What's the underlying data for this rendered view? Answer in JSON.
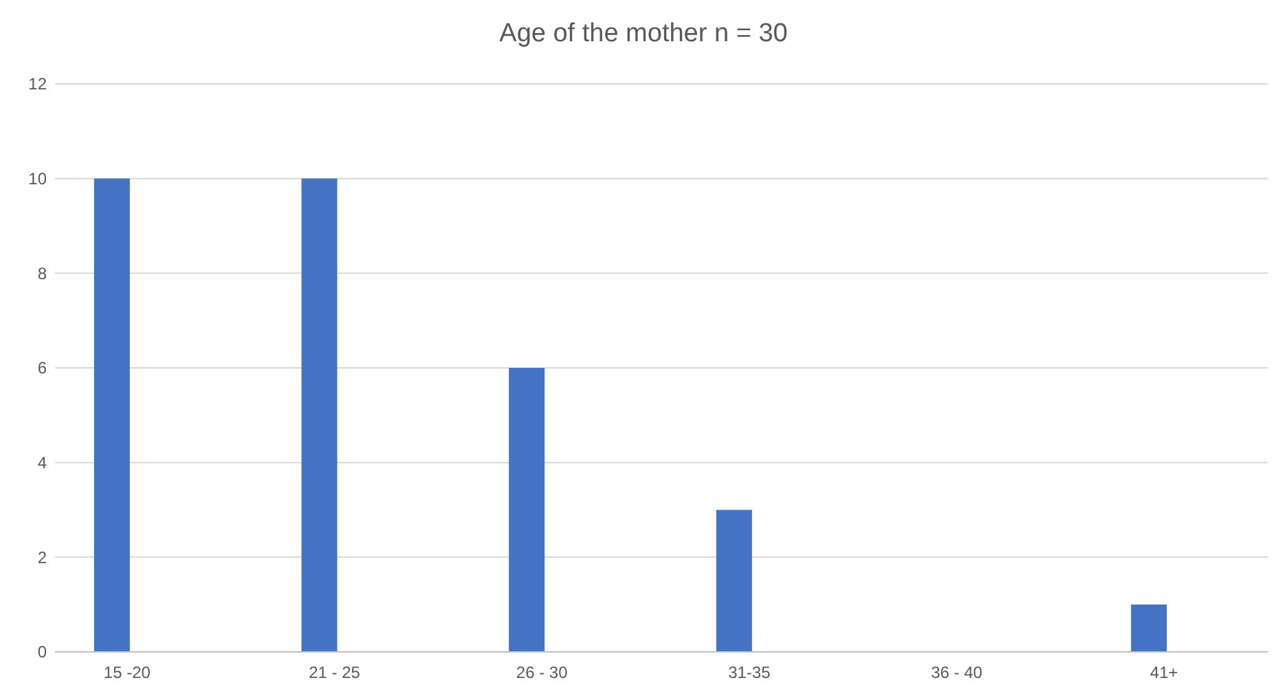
{
  "chart_data": {
    "type": "bar",
    "title": "Age of the mother  n = 30",
    "categories": [
      "15 -20",
      "21 - 25",
      "26 - 30",
      "31-35",
      "36 - 40",
      "41+"
    ],
    "values": [
      10,
      10,
      6,
      3,
      0,
      1
    ],
    "color": "#4472c4",
    "ylim": [
      0,
      12
    ],
    "yticks": [
      0,
      2,
      4,
      6,
      8,
      10,
      12
    ],
    "grid": "y"
  }
}
